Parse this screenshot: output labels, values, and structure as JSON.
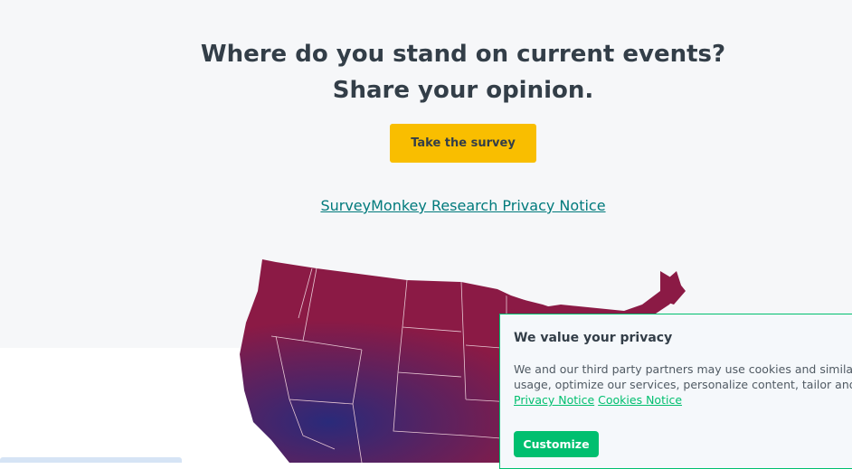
{
  "hero": {
    "title_line1": "Where do you stand on current events?",
    "title_line2": "Share your opinion.",
    "cta_label": "Take the survey",
    "privacy_link": "SurveyMonkey Research Privacy Notice"
  },
  "map": {
    "colors": {
      "base": "#8b1a45",
      "blue": "#2a2a7a",
      "border": "#e8c8d4"
    }
  },
  "cookie_banner": {
    "title": "We value your privacy",
    "text_line1": "We and our third party partners may use cookies and similar te",
    "text_line2": "usage, optimize our services, personalize content, tailor and me",
    "privacy_notice_link": "Privacy Notice",
    "cookies_notice_link": "Cookies Notice",
    "customize_label": "Customize",
    "accent": "#00bf6f"
  }
}
